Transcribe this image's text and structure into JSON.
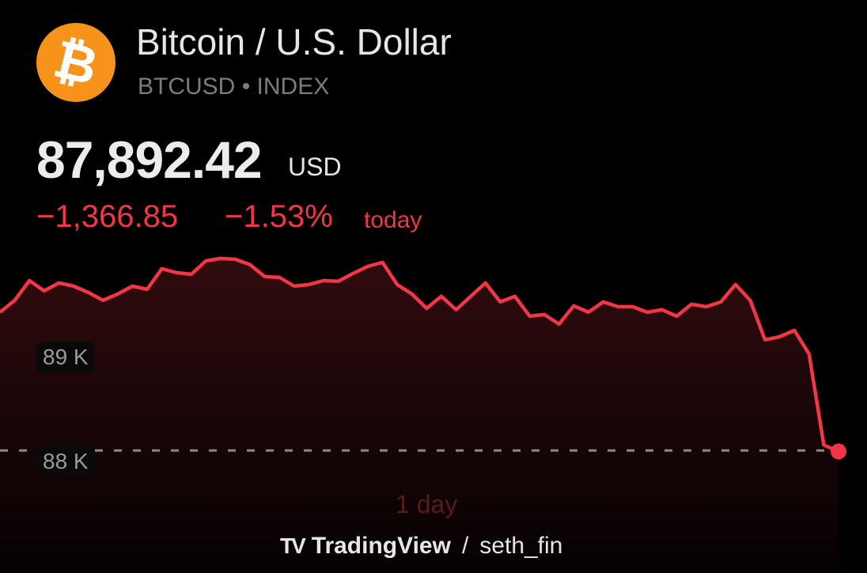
{
  "header": {
    "title": "Bitcoin / U.S. Dollar",
    "symbol": "BTCUSD",
    "separator": "•",
    "exchange": "INDEX",
    "logo_icon": "bitcoin-icon",
    "logo_glyph": "₿"
  },
  "quote": {
    "price": "87,892.42",
    "currency": "USD",
    "change": "−1,366.85",
    "change_percent": "−1.53%",
    "period_label": "today"
  },
  "colors": {
    "down": "#f23645",
    "logo": "#f7931a"
  },
  "chart_data": {
    "type": "area",
    "title": "BTCUSD 1 day",
    "y_ticks": [
      {
        "value": 89000,
        "label": "89 K"
      },
      {
        "value": 88000,
        "label": "88 K"
      }
    ],
    "ylim": [
      87600,
      90350
    ],
    "reference_line": 88000,
    "values": [
      89483,
      89610,
      89822,
      89712,
      89797,
      89763,
      89695,
      89610,
      89678,
      89763,
      89729,
      89949,
      89907,
      89890,
      90034,
      90059,
      90051,
      89992,
      89864,
      89856,
      89763,
      89780,
      89822,
      89814,
      89898,
      89975,
      90017,
      89780,
      89678,
      89525,
      89653,
      89509,
      89653,
      89797,
      89593,
      89653,
      89441,
      89458,
      89356,
      89551,
      89483,
      89593,
      89542,
      89542,
      89483,
      89509,
      89441,
      89568,
      89542,
      89593,
      89780,
      89610,
      89187,
      89220,
      89288,
      89034,
      88059,
      87990
    ],
    "range_label": "1 day"
  },
  "footer": {
    "brand": "TradingView",
    "separator": "/",
    "author": "seth_fin",
    "brand_mark": "TV"
  }
}
